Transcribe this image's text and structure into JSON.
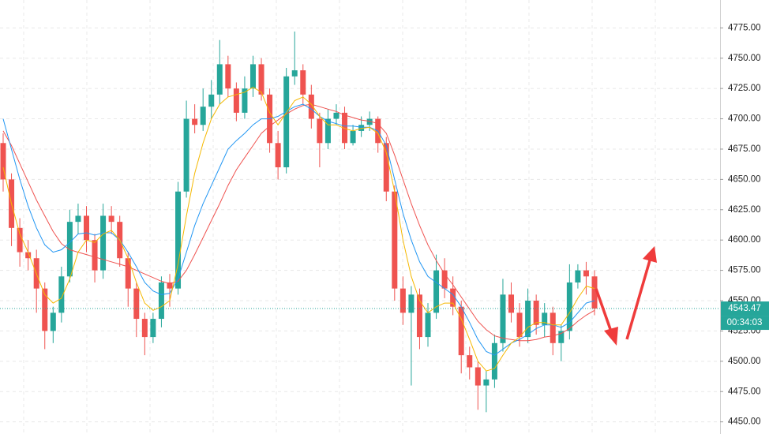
{
  "chart_data": {
    "type": "candlestick",
    "ylim": [
      4440,
      4798
    ],
    "yticks": [
      {
        "value": 4450,
        "label": "4450.00"
      },
      {
        "value": 4475,
        "label": "4475.00"
      },
      {
        "value": 4500,
        "label": "4500.00"
      },
      {
        "value": 4525,
        "label": "4525.00"
      },
      {
        "value": 4550,
        "label": "4550.00"
      },
      {
        "value": 4575,
        "label": "4575.00"
      },
      {
        "value": 4600,
        "label": "4600.00"
      },
      {
        "value": 4625,
        "label": "4625.00"
      },
      {
        "value": 4650,
        "label": "4650.00"
      },
      {
        "value": 4675,
        "label": "4675.00"
      },
      {
        "value": 4700,
        "label": "4700.00"
      },
      {
        "value": 4725,
        "label": "4725.00"
      },
      {
        "value": 4750,
        "label": "4750.00"
      },
      {
        "value": 4775,
        "label": "4775.00"
      }
    ],
    "grid": true,
    "up_color": "#26a69a",
    "down_color": "#ef5350",
    "open": [
      4680,
      4650,
      4610,
      4590,
      4585,
      4560,
      4525,
      4540,
      4570,
      4615,
      4620,
      4600,
      4575,
      4620,
      4615,
      4585,
      4560,
      4535,
      4520,
      4535,
      4565,
      4560,
      4640,
      4700,
      4695,
      4710,
      4720,
      4745,
      4725,
      4705,
      4725,
      4745,
      4720,
      4680,
      4660,
      4735,
      4740,
      4720,
      4700,
      4680,
      4700,
      4705,
      4680,
      4690,
      4695,
      4700,
      4680,
      4640,
      4560,
      4540,
      4555,
      4520,
      4540,
      4575,
      4560,
      4545,
      4505,
      4495,
      4480,
      4485,
      4515,
      4555,
      4540,
      4520,
      4550,
      4530,
      4540,
      4515,
      4525,
      4565,
      4575,
      4570
    ],
    "high": [
      4688,
      4655,
      4618,
      4600,
      4592,
      4565,
      4545,
      4578,
      4625,
      4630,
      4628,
      4605,
      4630,
      4628,
      4620,
      4590,
      4565,
      4540,
      4540,
      4570,
      4572,
      4648,
      4715,
      4712,
      4725,
      4732,
      4765,
      4752,
      4730,
      4735,
      4752,
      4750,
      4725,
      4690,
      4742,
      4772,
      4745,
      4728,
      4705,
      4708,
      4712,
      4710,
      4695,
      4702,
      4706,
      4702,
      4685,
      4645,
      4570,
      4562,
      4560,
      4548,
      4588,
      4585,
      4570,
      4550,
      4512,
      4500,
      4492,
      4522,
      4568,
      4565,
      4548,
      4560,
      4555,
      4548,
      4545,
      4530,
      4580,
      4580,
      4582,
      4575
    ],
    "low": [
      4640,
      4595,
      4578,
      4575,
      4540,
      4510,
      4515,
      4532,
      4565,
      4605,
      4590,
      4565,
      4568,
      4605,
      4578,
      4545,
      4520,
      4505,
      4515,
      4528,
      4545,
      4555,
      4635,
      4688,
      4690,
      4700,
      4712,
      4718,
      4698,
      4700,
      4718,
      4715,
      4672,
      4650,
      4655,
      4728,
      4712,
      4692,
      4660,
      4675,
      4695,
      4675,
      4678,
      4685,
      4690,
      4672,
      4632,
      4550,
      4530,
      4480,
      4510,
      4512,
      4535,
      4552,
      4538,
      4490,
      4485,
      4460,
      4458,
      4478,
      4508,
      4532,
      4512,
      4515,
      4522,
      4520,
      4505,
      4500,
      4518,
      4560,
      4555,
      4538
    ],
    "close": [
      4650,
      4610,
      4590,
      4585,
      4560,
      4525,
      4540,
      4570,
      4615,
      4620,
      4600,
      4575,
      4620,
      4615,
      4585,
      4560,
      4535,
      4520,
      4535,
      4565,
      4560,
      4640,
      4700,
      4695,
      4710,
      4720,
      4745,
      4725,
      4705,
      4725,
      4745,
      4720,
      4680,
      4660,
      4735,
      4740,
      4720,
      4700,
      4680,
      4700,
      4705,
      4680,
      4690,
      4695,
      4700,
      4680,
      4640,
      4560,
      4540,
      4555,
      4520,
      4540,
      4575,
      4560,
      4545,
      4505,
      4495,
      4480,
      4485,
      4515,
      4555,
      4540,
      4520,
      4550,
      4530,
      4540,
      4515,
      4525,
      4565,
      4575,
      4570,
      4543.47
    ],
    "series": [
      {
        "color": "#ef5350",
        "values": [
          4690,
          4678,
          4663,
          4648,
          4633,
          4620,
          4607,
          4597,
          4592,
          4590,
          4588,
          4586,
          4584,
          4582,
          4580,
          4578,
          4575,
          4572,
          4569,
          4566,
          4564,
          4566,
          4575,
          4588,
          4602,
          4616,
          4630,
          4645,
          4658,
          4668,
          4678,
          4688,
          4694,
          4699,
          4704,
          4708,
          4711,
          4712,
          4710,
          4708,
          4706,
          4703,
          4701,
          4699,
          4698,
          4696,
          4688,
          4670,
          4650,
          4630,
          4612,
          4596,
          4583,
          4572,
          4563,
          4553,
          4543,
          4533,
          4526,
          4521,
          4519,
          4518,
          4517,
          4517,
          4518,
          4520,
          4521,
          4523,
          4527,
          4533,
          4538,
          4542
        ]
      },
      {
        "color": "#2196f3",
        "values": [
          4700,
          4675,
          4650,
          4628,
          4610,
          4596,
          4590,
          4592,
          4598,
          4605,
          4606,
          4604,
          4606,
          4606,
          4600,
          4590,
          4578,
          4565,
          4558,
          4555,
          4556,
          4568,
          4590,
          4612,
          4630,
          4645,
          4660,
          4675,
          4682,
          4688,
          4695,
          4700,
          4700,
          4702,
          4706,
          4710,
          4712,
          4708,
          4702,
          4698,
          4696,
          4694,
          4694,
          4693,
          4693,
          4690,
          4678,
          4650,
          4622,
          4600,
          4582,
          4570,
          4565,
          4560,
          4555,
          4545,
          4532,
          4518,
          4508,
          4505,
          4510,
          4515,
          4518,
          4522,
          4527,
          4530,
          4530,
          4528,
          4532,
          4540,
          4548,
          4550
        ]
      },
      {
        "color": "#f5b800",
        "values": [
          4660,
          4630,
          4605,
          4590,
          4572,
          4555,
          4548,
          4552,
          4568,
          4590,
          4600,
          4598,
          4605,
          4608,
          4600,
          4585,
          4565,
          4548,
          4542,
          4545,
          4550,
          4580,
          4620,
          4655,
          4680,
          4700,
          4712,
          4718,
          4720,
          4722,
          4726,
          4722,
          4705,
          4695,
          4705,
          4715,
          4718,
          4712,
          4702,
          4695,
          4695,
          4692,
          4690,
          4692,
          4693,
          4688,
          4672,
          4640,
          4600,
          4570,
          4550,
          4540,
          4545,
          4548,
          4548,
          4535,
          4518,
          4500,
          4492,
          4494,
          4505,
          4515,
          4520,
          4528,
          4532,
          4532,
          4530,
          4530,
          4540,
          4552,
          4562,
          4560
        ]
      }
    ],
    "last_price": 4543.47,
    "countdown": "00:34:03"
  }
}
